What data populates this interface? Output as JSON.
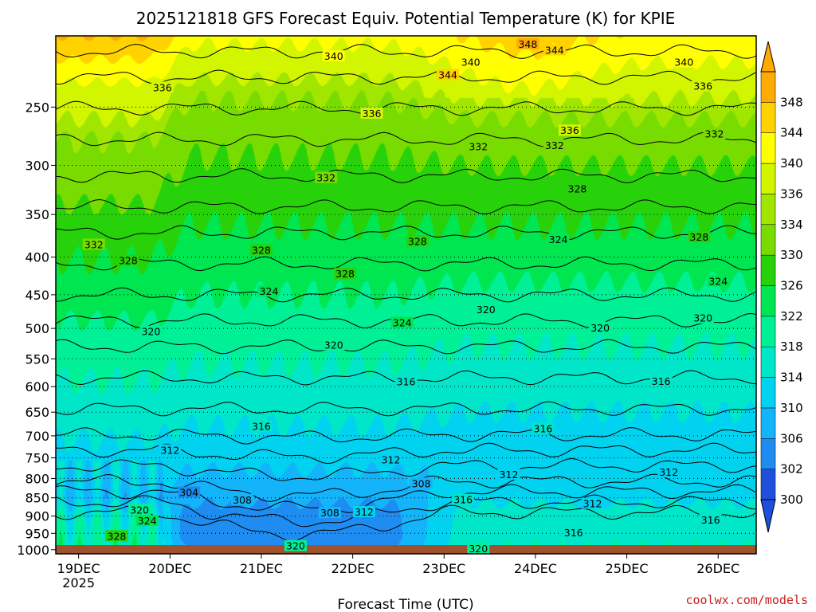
{
  "chart_data": {
    "type": "heatmap",
    "title": "2025121818 GFS Forecast Equiv. Potential Temperature (K) for KPIE",
    "xlabel": "Forecast Time (UTC)",
    "ylabel": "",
    "credit": "coolwx.com/models",
    "x_start_hours": 0,
    "x_end_hours": 184,
    "x_ticks": [
      {
        "label": "19DEC",
        "sub": "2025",
        "hours": 6
      },
      {
        "label": "20DEC",
        "sub": "",
        "hours": 30
      },
      {
        "label": "21DEC",
        "sub": "",
        "hours": 54
      },
      {
        "label": "22DEC",
        "sub": "",
        "hours": 78
      },
      {
        "label": "23DEC",
        "sub": "",
        "hours": 102
      },
      {
        "label": "24DEC",
        "sub": "",
        "hours": 126
      },
      {
        "label": "25DEC",
        "sub": "",
        "hours": 150
      },
      {
        "label": "26DEC",
        "sub": "",
        "hours": 174
      }
    ],
    "y_levels": [
      250,
      300,
      350,
      400,
      450,
      500,
      550,
      600,
      650,
      700,
      750,
      800,
      850,
      900,
      950,
      1000
    ],
    "y_range": [
      200,
      1013
    ],
    "y_log": true,
    "grid": true,
    "legend_levels": [
      300,
      302,
      306,
      310,
      314,
      318,
      322,
      326,
      330,
      334,
      336,
      340,
      344,
      348
    ],
    "legend_labels": [
      "300",
      "302",
      "306",
      "310",
      "314",
      "318",
      "322",
      "326",
      "330",
      "334",
      "336",
      "340",
      "344",
      "348"
    ],
    "colorbar": {
      "colors": [
        "#1e50dc",
        "#1e8cf0",
        "#14b4fa",
        "#00d2f0",
        "#00e6c8",
        "#00f096",
        "#00e650",
        "#28d20a",
        "#78dc00",
        "#a0e600",
        "#d2f500",
        "#ffff00",
        "#ffd200",
        "#ffaa00"
      ]
    },
    "contour_labels": [
      {
        "text": "348",
        "hours": 124,
        "p": 206
      },
      {
        "text": "344",
        "hours": 131,
        "p": 210
      },
      {
        "text": "344",
        "hours": 103,
        "p": 227
      },
      {
        "text": "340",
        "hours": 73,
        "p": 214
      },
      {
        "text": "340",
        "hours": 109,
        "p": 218
      },
      {
        "text": "340",
        "hours": 165,
        "p": 218
      },
      {
        "text": "336",
        "hours": 28,
        "p": 236
      },
      {
        "text": "336",
        "hours": 83,
        "p": 256
      },
      {
        "text": "336",
        "hours": 135,
        "p": 270
      },
      {
        "text": "336",
        "hours": 170,
        "p": 235
      },
      {
        "text": "332",
        "hours": 111,
        "p": 284
      },
      {
        "text": "332",
        "hours": 131,
        "p": 283
      },
      {
        "text": "332",
        "hours": 173,
        "p": 273
      },
      {
        "text": "332",
        "hours": 71,
        "p": 313
      },
      {
        "text": "332",
        "hours": 10,
        "p": 386
      },
      {
        "text": "328",
        "hours": 137,
        "p": 324
      },
      {
        "text": "328",
        "hours": 19,
        "p": 406
      },
      {
        "text": "328",
        "hours": 54,
        "p": 393
      },
      {
        "text": "328",
        "hours": 95,
        "p": 382
      },
      {
        "text": "328",
        "hours": 76,
        "p": 423
      },
      {
        "text": "328",
        "hours": 169,
        "p": 377
      },
      {
        "text": "324",
        "hours": 132,
        "p": 380
      },
      {
        "text": "324",
        "hours": 56,
        "p": 447
      },
      {
        "text": "324",
        "hours": 91,
        "p": 493
      },
      {
        "text": "324",
        "hours": 174,
        "p": 433
      },
      {
        "text": "320",
        "hours": 25,
        "p": 507
      },
      {
        "text": "320",
        "hours": 73,
        "p": 529
      },
      {
        "text": "320",
        "hours": 113,
        "p": 473
      },
      {
        "text": "320",
        "hours": 143,
        "p": 501
      },
      {
        "text": "320",
        "hours": 170,
        "p": 486
      },
      {
        "text": "320",
        "hours": 22,
        "p": 886
      },
      {
        "text": "320",
        "hours": 63,
        "p": 992
      },
      {
        "text": "320",
        "hours": 111,
        "p": 1000
      },
      {
        "text": "316",
        "hours": 92,
        "p": 593
      },
      {
        "text": "316",
        "hours": 54,
        "p": 682
      },
      {
        "text": "316",
        "hours": 128,
        "p": 687
      },
      {
        "text": "316",
        "hours": 159,
        "p": 592
      },
      {
        "text": "316",
        "hours": 107,
        "p": 858
      },
      {
        "text": "316",
        "hours": 172,
        "p": 914
      },
      {
        "text": "316",
        "hours": 136,
        "p": 952
      },
      {
        "text": "312",
        "hours": 30,
        "p": 735
      },
      {
        "text": "312",
        "hours": 88,
        "p": 757
      },
      {
        "text": "312",
        "hours": 119,
        "p": 793
      },
      {
        "text": "312",
        "hours": 161,
        "p": 787
      },
      {
        "text": "312",
        "hours": 81,
        "p": 892
      },
      {
        "text": "312",
        "hours": 141,
        "p": 869
      },
      {
        "text": "308",
        "hours": 96,
        "p": 816
      },
      {
        "text": "308",
        "hours": 49,
        "p": 859
      },
      {
        "text": "308",
        "hours": 72,
        "p": 894
      },
      {
        "text": "304",
        "hours": 35,
        "p": 839
      },
      {
        "text": "324",
        "hours": 24,
        "p": 917
      },
      {
        "text": "328",
        "hours": 16,
        "p": 962
      }
    ]
  }
}
